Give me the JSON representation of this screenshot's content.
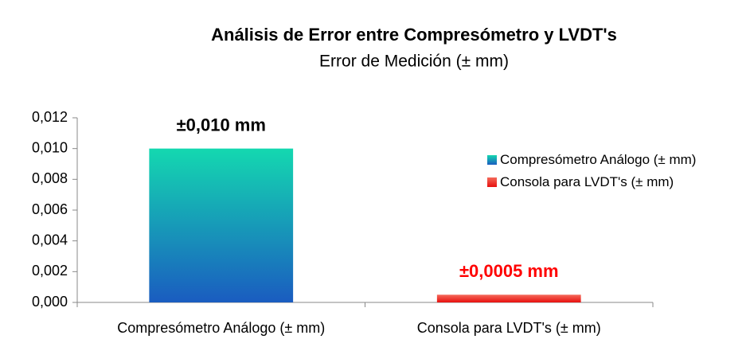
{
  "chart_data": {
    "type": "bar",
    "title": "Análisis de Error entre Compresómetro y LVDT's",
    "subtitle": "Error  de Medición (± mm)",
    "categories": [
      "Compresómetro Análogo (± mm)",
      "Consola para LVDT's (± mm)"
    ],
    "series": [
      {
        "name": "Compresómetro Análogo (± mm)",
        "color": "#1e8fd6",
        "gradient": [
          "#14d8b0",
          "#1a5cc0"
        ],
        "label_color": "#000000",
        "values": [
          0.01,
          null
        ],
        "value_labels": [
          "±0,010 mm",
          null
        ]
      },
      {
        "name": "Consola para LVDT's (± mm)",
        "color": "#e8100f",
        "gradient": [
          "#f46a5a",
          "#e8100f"
        ],
        "label_color": "#ff0000",
        "values": [
          null,
          0.0005
        ],
        "value_labels": [
          null,
          "±0,0005 mm"
        ]
      }
    ],
    "ylim": [
      0,
      0.012
    ],
    "yticks": [
      {
        "value": 0,
        "label": "0,000"
      },
      {
        "value": 0.002,
        "label": "0,002"
      },
      {
        "value": 0.004,
        "label": "0,004"
      },
      {
        "value": 0.006,
        "label": "0,006"
      },
      {
        "value": 0.008,
        "label": "0,008"
      },
      {
        "value": 0.01,
        "label": "0,010"
      },
      {
        "value": 0.012,
        "label": "0,012"
      }
    ],
    "legend": "right"
  }
}
